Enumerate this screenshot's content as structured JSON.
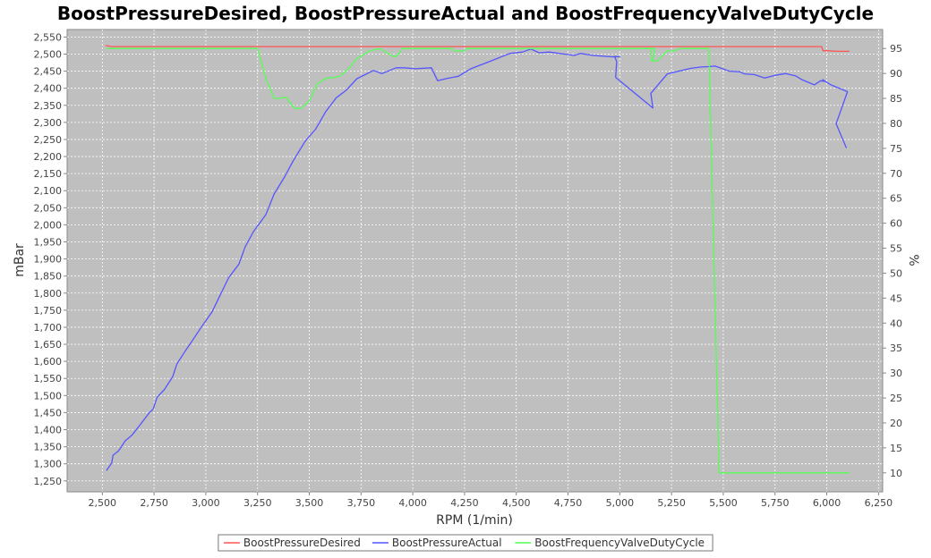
{
  "chart_data": {
    "type": "line",
    "title": "BoostPressureDesired, BoostPressureActual and BoostFrequencyValveDutyCycle",
    "xlabel": "RPM (1/min)",
    "ylabel": "mBar",
    "y2label": "%",
    "xlim": [
      2330,
      6270
    ],
    "ylim": [
      1218,
      2572
    ],
    "y2lim": [
      6.2,
      98.8
    ],
    "xticks": [
      "2,500",
      "2,750",
      "3,000",
      "3,250",
      "3,500",
      "3,750",
      "4,000",
      "4,250",
      "4,500",
      "4,750",
      "5,000",
      "5,250",
      "5,500",
      "5,750",
      "6,000",
      "6,250"
    ],
    "yticks": [
      "1,250",
      "1,300",
      "1,350",
      "1,400",
      "1,450",
      "1,500",
      "1,550",
      "1,600",
      "1,650",
      "1,700",
      "1,750",
      "1,800",
      "1,850",
      "1,900",
      "1,950",
      "2,000",
      "2,050",
      "2,100",
      "2,150",
      "2,200",
      "2,250",
      "2,300",
      "2,350",
      "2,400",
      "2,450",
      "2,500",
      "2,550"
    ],
    "y2ticks": [
      "10",
      "15",
      "20",
      "25",
      "30",
      "35",
      "40",
      "45",
      "50",
      "55",
      "60",
      "65",
      "70",
      "75",
      "80",
      "85",
      "90",
      "95"
    ],
    "grid": true,
    "legend_position": "bottom",
    "series": [
      {
        "name": "BoostPressureDesired",
        "color": "#ff5555",
        "axis": "left",
        "points": [
          [
            2515,
            2525
          ],
          [
            2545,
            2522
          ],
          [
            3000,
            2522
          ],
          [
            4000,
            2522
          ],
          [
            5000,
            2522
          ],
          [
            5975,
            2522
          ],
          [
            5982,
            2510
          ],
          [
            6000,
            2510
          ],
          [
            6050,
            2508
          ],
          [
            6110,
            2508
          ]
        ]
      },
      {
        "name": "BoostPressureActual",
        "color": "#5555ff",
        "axis": "left",
        "points": [
          [
            2520,
            1280
          ],
          [
            2545,
            1302
          ],
          [
            2552,
            1325
          ],
          [
            2578,
            1338
          ],
          [
            2590,
            1348
          ],
          [
            2610,
            1367
          ],
          [
            2645,
            1385
          ],
          [
            2690,
            1420
          ],
          [
            2725,
            1448
          ],
          [
            2745,
            1460
          ],
          [
            2765,
            1495
          ],
          [
            2800,
            1518
          ],
          [
            2840,
            1555
          ],
          [
            2860,
            1592
          ],
          [
            2900,
            1630
          ],
          [
            2940,
            1665
          ],
          [
            2980,
            1702
          ],
          [
            3030,
            1745
          ],
          [
            3070,
            1795
          ],
          [
            3110,
            1845
          ],
          [
            3160,
            1885
          ],
          [
            3190,
            1935
          ],
          [
            3230,
            1980
          ],
          [
            3290,
            2030
          ],
          [
            3330,
            2090
          ],
          [
            3380,
            2140
          ],
          [
            3420,
            2185
          ],
          [
            3480,
            2245
          ],
          [
            3530,
            2280
          ],
          [
            3580,
            2332
          ],
          [
            3630,
            2372
          ],
          [
            3680,
            2395
          ],
          [
            3730,
            2428
          ],
          [
            3810,
            2452
          ],
          [
            3850,
            2443
          ],
          [
            3920,
            2460
          ],
          [
            3960,
            2460
          ],
          [
            4010,
            2457
          ],
          [
            4090,
            2460
          ],
          [
            4120,
            2422
          ],
          [
            4160,
            2428
          ],
          [
            4220,
            2435
          ],
          [
            4280,
            2457
          ],
          [
            4370,
            2478
          ],
          [
            4470,
            2502
          ],
          [
            4530,
            2506
          ],
          [
            4570,
            2515
          ],
          [
            4610,
            2504
          ],
          [
            4660,
            2506
          ],
          [
            4780,
            2496
          ],
          [
            4810,
            2502
          ],
          [
            4870,
            2496
          ],
          [
            4960,
            2492
          ],
          [
            5000,
            2492
          ],
          [
            4975,
            2493
          ],
          [
            4985,
            2478
          ],
          [
            4980,
            2432
          ],
          [
            5160,
            2342
          ],
          [
            5150,
            2385
          ],
          [
            5230,
            2442
          ],
          [
            5340,
            2458
          ],
          [
            5390,
            2462
          ],
          [
            5420,
            2463
          ],
          [
            5460,
            2465
          ],
          [
            5530,
            2450
          ],
          [
            5580,
            2448
          ],
          [
            5600,
            2442
          ],
          [
            5650,
            2440
          ],
          [
            5700,
            2430
          ],
          [
            5750,
            2438
          ],
          [
            5800,
            2443
          ],
          [
            5850,
            2436
          ],
          [
            5880,
            2425
          ],
          [
            5940,
            2410
          ],
          [
            5970,
            2422
          ],
          [
            5990,
            2420
          ],
          [
            5980,
            2425
          ],
          [
            6020,
            2410
          ],
          [
            6100,
            2390
          ],
          [
            6045,
            2296
          ],
          [
            6095,
            2225
          ]
        ]
      },
      {
        "name": "BoostFrequencyValveDutyCycle",
        "color": "#55ff55",
        "axis": "right",
        "points": [
          [
            2520,
            95
          ],
          [
            2545,
            95
          ],
          [
            3000,
            95
          ],
          [
            3250,
            95
          ],
          [
            3290,
            89
          ],
          [
            3330,
            85
          ],
          [
            3350,
            85
          ],
          [
            3390,
            85.2
          ],
          [
            3400,
            84.5
          ],
          [
            3430,
            83
          ],
          [
            3460,
            83
          ],
          [
            3500,
            84.5
          ],
          [
            3540,
            88
          ],
          [
            3580,
            89
          ],
          [
            3620,
            89.2
          ],
          [
            3650,
            89.5
          ],
          [
            3690,
            91
          ],
          [
            3730,
            93
          ],
          [
            3790,
            94.5
          ],
          [
            3840,
            95
          ],
          [
            3900,
            93.5
          ],
          [
            3920,
            93.4
          ],
          [
            3950,
            95
          ],
          [
            4000,
            95
          ],
          [
            4190,
            95
          ],
          [
            4200,
            94.5
          ],
          [
            4250,
            94.5
          ],
          [
            4260,
            95
          ],
          [
            4600,
            95
          ],
          [
            5000,
            95
          ],
          [
            5150,
            95
          ],
          [
            5155,
            92.5
          ],
          [
            5150,
            95
          ],
          [
            5170,
            95
          ],
          [
            5160,
            92.5
          ],
          [
            5180,
            92.5
          ],
          [
            5230,
            94.5
          ],
          [
            5260,
            94.5
          ],
          [
            5290,
            95
          ],
          [
            5430,
            95
          ],
          [
            5480,
            10
          ],
          [
            5700,
            10
          ],
          [
            6000,
            10
          ],
          [
            6110,
            10
          ]
        ]
      }
    ]
  }
}
